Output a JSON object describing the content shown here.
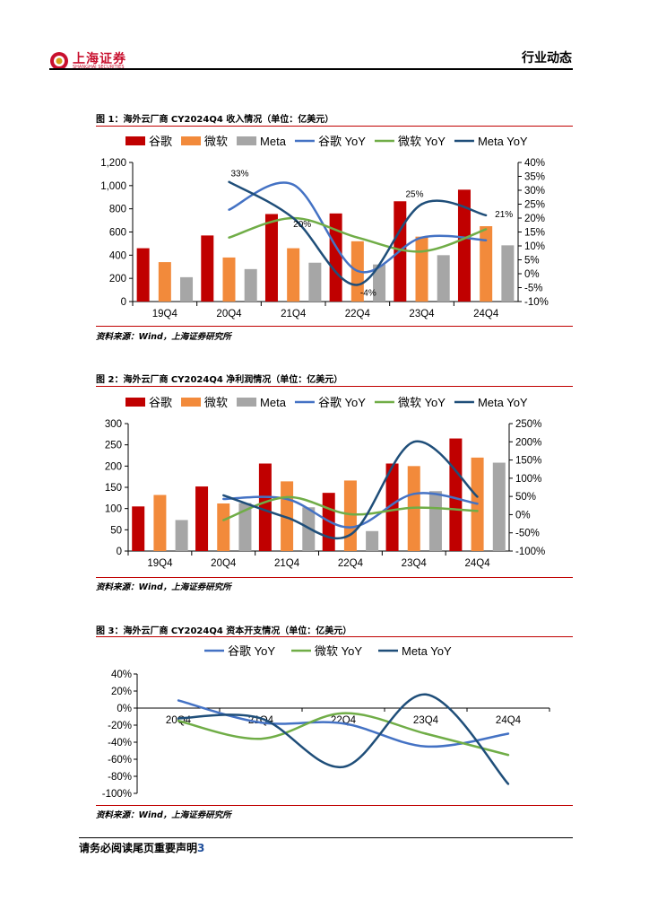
{
  "header": {
    "logo_cn": "上海证券",
    "logo_en": "SHANGHAI SECURITIES",
    "section": "行业动态"
  },
  "footer": {
    "disclaimer": "请务必阅读尾页重要声明",
    "page": "3"
  },
  "colors": {
    "google_bar": "#c00000",
    "microsoft_bar": "#f28a3b",
    "meta_bar": "#a6a6a6",
    "google_line": "#4472c4",
    "microsoft_line": "#70ad47",
    "meta_line": "#1f4e79"
  },
  "figures": [
    {
      "title": "图 1：海外云厂商 CY2024Q4 收入情况（单位：亿美元）",
      "source": "资料来源：Wind，上海证券研究所"
    },
    {
      "title": "图 2：海外云厂商 CY2024Q4 净利润情况（单位：亿美元）",
      "source": "资料来源：Wind，上海证券研究所"
    },
    {
      "title": "图 3：海外云厂商 CY2024Q4 资本开支情况（单位：亿美元）",
      "source": "资料来源：Wind，上海证券研究所"
    }
  ],
  "chart_data": [
    {
      "type": "bar",
      "categories": [
        "19Q4",
        "20Q4",
        "21Q4",
        "22Q4",
        "23Q4",
        "24Q4"
      ],
      "series": [
        {
          "name": "谷歌",
          "values": [
            460,
            570,
            755,
            760,
            865,
            965
          ]
        },
        {
          "name": "微软",
          "values": [
            340,
            380,
            460,
            520,
            560,
            650
          ]
        },
        {
          "name": "Meta",
          "values": [
            210,
            280,
            335,
            320,
            400,
            485
          ]
        }
      ],
      "line_series": [
        {
          "name": "谷歌 YoY",
          "x": [
            "20Q4",
            "21Q4",
            "22Q4",
            "23Q4",
            "24Q4"
          ],
          "values": [
            23,
            32,
            1,
            13,
            12
          ]
        },
        {
          "name": "微软 YoY",
          "x": [
            "20Q4",
            "21Q4",
            "22Q4",
            "23Q4",
            "24Q4"
          ],
          "values": [
            13,
            20,
            13,
            8,
            16
          ]
        },
        {
          "name": "Meta YoY",
          "x": [
            "20Q4",
            "21Q4",
            "22Q4",
            "23Q4",
            "24Q4"
          ],
          "values": [
            33,
            20,
            -4,
            25,
            21
          ]
        }
      ],
      "annotations": [
        {
          "x": "20Q4",
          "value": 33,
          "label": "33%"
        },
        {
          "x": "21Q4",
          "value": 20,
          "label": "20%"
        },
        {
          "x": "22Q4",
          "value": -4,
          "label": "-4%"
        },
        {
          "x": "23Q4",
          "value": 25,
          "label": "25%"
        },
        {
          "x": "24Q4",
          "value": 21,
          "label": "21%"
        }
      ],
      "ylim": [
        0,
        1200
      ],
      "yticks": [
        "0",
        "200",
        "400",
        "600",
        "800",
        "1,000",
        "1,200"
      ],
      "y2lim": [
        -10,
        40
      ],
      "y2ticks": [
        "-10%",
        "-5%",
        "0%",
        "5%",
        "10%",
        "15%",
        "20%",
        "25%",
        "30%",
        "35%",
        "40%"
      ],
      "legend": "top"
    },
    {
      "type": "bar",
      "categories": [
        "19Q4",
        "20Q4",
        "21Q4",
        "22Q4",
        "23Q4",
        "24Q4"
      ],
      "series": [
        {
          "name": "谷歌",
          "values": [
            105,
            152,
            206,
            137,
            206,
            265
          ]
        },
        {
          "name": "微软",
          "values": [
            132,
            112,
            164,
            166,
            200,
            220
          ]
        },
        {
          "name": "Meta",
          "values": [
            73,
            113,
            103,
            47,
            141,
            208
          ]
        }
      ],
      "line_series": [
        {
          "name": "谷歌 YoY",
          "x": [
            "20Q4",
            "21Q4",
            "22Q4",
            "23Q4",
            "24Q4"
          ],
          "values": [
            43,
            43,
            -35,
            57,
            30
          ]
        },
        {
          "name": "微软 YoY",
          "x": [
            "20Q4",
            "21Q4",
            "22Q4",
            "23Q4",
            "24Q4"
          ],
          "values": [
            -15,
            48,
            1,
            19,
            10
          ]
        },
        {
          "name": "Meta YoY",
          "x": [
            "20Q4",
            "21Q4",
            "22Q4",
            "23Q4",
            "24Q4"
          ],
          "values": [
            53,
            -8,
            -55,
            200,
            49
          ]
        }
      ],
      "ylim": [
        0,
        300
      ],
      "yticks": [
        "0",
        "50",
        "100",
        "150",
        "200",
        "250",
        "300"
      ],
      "y2lim": [
        -100,
        250
      ],
      "y2ticks": [
        "-100%",
        "-50%",
        "0%",
        "50%",
        "100%",
        "150%",
        "200%",
        "250%"
      ],
      "legend": "top"
    },
    {
      "type": "line",
      "categories": [
        "20Q4",
        "21Q4",
        "22Q4",
        "23Q4",
        "24Q4"
      ],
      "series": [
        {
          "name": "谷歌 YoY",
          "values": [
            9,
            -17,
            -18,
            -45,
            -30
          ]
        },
        {
          "name": "微软 YoY",
          "values": [
            -15,
            -36,
            -6,
            -30,
            -55
          ]
        },
        {
          "name": "Meta YoY",
          "values": [
            -12,
            -12,
            -69,
            16,
            -89
          ]
        }
      ],
      "ylim": [
        -100,
        40
      ],
      "yticks": [
        "-100%",
        "-80%",
        "-60%",
        "-40%",
        "-20%",
        "0%",
        "20%",
        "40%"
      ],
      "legend": "top"
    }
  ]
}
